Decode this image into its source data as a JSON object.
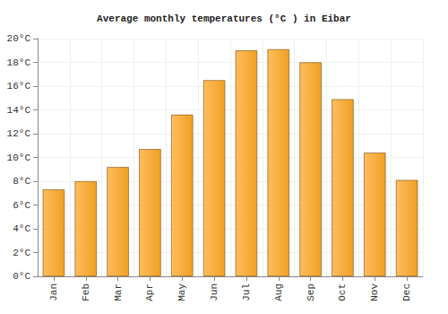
{
  "chart_data": {
    "type": "bar",
    "title": "Average monthly temperatures (°C ) in Eibar",
    "categories": [
      "Jan",
      "Feb",
      "Mar",
      "Apr",
      "May",
      "Jun",
      "Jul",
      "Aug",
      "Sep",
      "Oct",
      "Nov",
      "Dec"
    ],
    "values": [
      7.3,
      8.0,
      9.2,
      10.7,
      13.6,
      16.5,
      19.0,
      19.1,
      18.0,
      14.9,
      10.4,
      8.1
    ],
    "color": "#ffa726",
    "ylim": [
      0,
      20
    ],
    "yticks": [
      {
        "value": 0,
        "label": "0°C"
      },
      {
        "value": 2,
        "label": "2°C"
      },
      {
        "value": 4,
        "label": "4°C"
      },
      {
        "value": 6,
        "label": "6°C"
      },
      {
        "value": 8,
        "label": "8°C"
      },
      {
        "value": 10,
        "label": "10°C"
      },
      {
        "value": 12,
        "label": "12°C"
      },
      {
        "value": 14,
        "label": "14°C"
      },
      {
        "value": 16,
        "label": "16°C"
      },
      {
        "value": 18,
        "label": "18°C"
      },
      {
        "value": 20,
        "label": "20°C"
      }
    ],
    "grid": true
  }
}
